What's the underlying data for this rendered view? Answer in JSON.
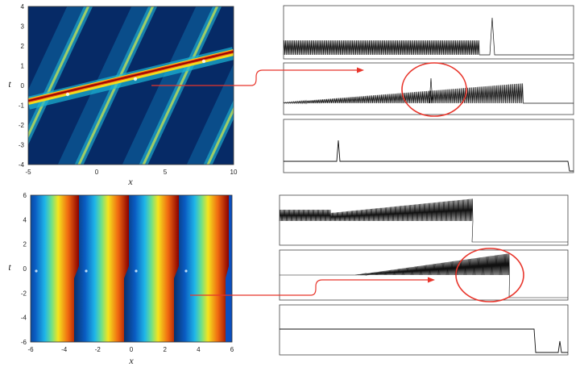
{
  "top_panel": {
    "xlabel": "x",
    "ylabel": "t",
    "x_ticks": [
      "-5",
      "0",
      "5",
      "10"
    ],
    "y_ticks": [
      "4",
      "3",
      "2",
      "1",
      "0",
      "-1",
      "-2",
      "-3",
      "-4"
    ],
    "xlim": [
      -5,
      10
    ],
    "ylim": [
      -4,
      4
    ]
  },
  "bottom_panel": {
    "xlabel": "x",
    "ylabel": "t",
    "x_ticks": [
      "-6",
      "-4",
      "-2",
      "0",
      "2",
      "4",
      "6"
    ],
    "y_ticks": [
      "6",
      "4",
      "2",
      "0",
      "-2",
      "-4",
      "-6"
    ],
    "xlim": [
      -6,
      6
    ],
    "ylim": [
      -6,
      6
    ]
  },
  "colors": {
    "arrow": "#e8352b",
    "highlight_circle": "#e8352b",
    "signal": "#111111"
  }
}
